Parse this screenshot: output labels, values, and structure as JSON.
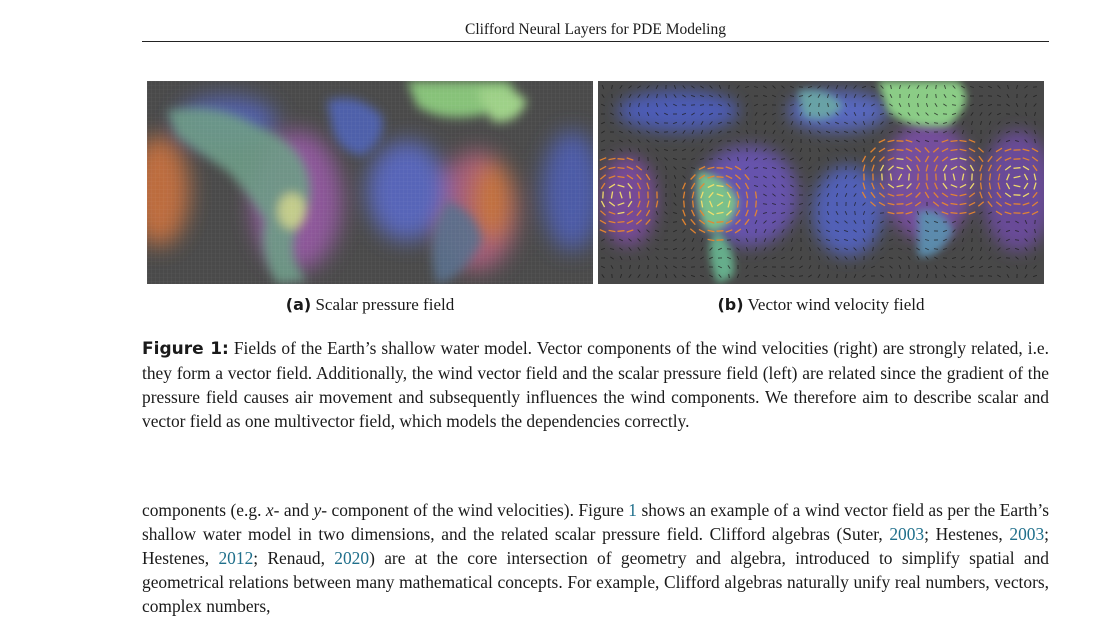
{
  "header": {
    "running_title": "Clifford Neural Layers for PDE Modeling"
  },
  "figure": {
    "subfigure_a": {
      "tag": "(a)",
      "caption": "Scalar pressure field"
    },
    "subfigure_b": {
      "tag": "(b)",
      "caption": "Vector wind velocity field"
    },
    "caption_label": "Figure 1:",
    "caption_text": "Fields of the Earth’s shallow water model. Vector components of the wind velocities (right) are strongly related, i.e. they form a vector field. Additionally, the wind vector field and the scalar pressure field (left) are related since the gradient of the pressure field causes air movement and subsequently influences the wind components. We therefore aim to describe scalar and vector field as one multivector field, which models the dependencies correctly."
  },
  "body": {
    "s1": "components (e.g. ",
    "x_var": "x",
    "s2": "- and ",
    "y_var": "y",
    "s3": "- component of the wind velocities). Figure ",
    "fig_ref": "1",
    "s4": " shows an example of a wind vector field as per the Earth’s shallow water model in two dimensions, and the related scalar pressure field. Clifford algebras (Suter, ",
    "cite1_year": "2003",
    "s5": "; Hestenes, ",
    "cite2_year": "2003",
    "s6": "; Hestenes, ",
    "cite3_year": "2012",
    "s7": "; Renaud, ",
    "cite4_year": "2020",
    "s8": ") are at the core intersection of geometry and algebra, introduced to simplify spatial and geometrical relations between many mathematical concepts. For example, Clifford algebras naturally unify real numbers, vectors, complex numbers,"
  },
  "colors": {
    "link": "#1f6f8b",
    "map_background": "#4a4a4a",
    "land_green": "#9fdc82",
    "field_blue": "#5566cc",
    "field_purple": "#a45fae",
    "field_orange": "#e8862f",
    "field_yellow": "#f5e06a",
    "arrow_color": "#1b1b1b"
  }
}
